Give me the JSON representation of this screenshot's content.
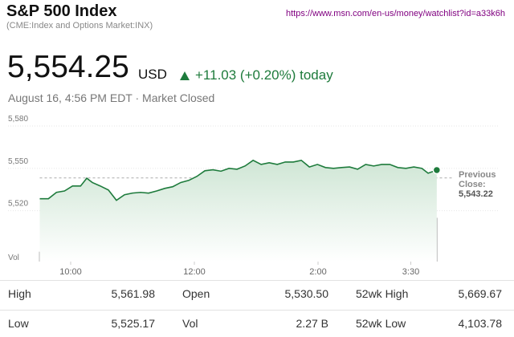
{
  "header": {
    "title": "S&P 500 Index",
    "subtitle": "(CME:Index and Options Market:INX)",
    "url": "https://www.msn.com/en-us/money/watchlist?id=a33k6h"
  },
  "quote": {
    "price": "5,554.25",
    "currency": "USD",
    "change": "+11.03 (+0.20%) today",
    "timestamp": "August 16, 4:56 PM EDT · Market Closed"
  },
  "chart_data": {
    "type": "line",
    "x": [
      9.5,
      9.64,
      9.77,
      9.9,
      10.03,
      10.16,
      10.26,
      10.35,
      10.48,
      10.61,
      10.74,
      10.87,
      11.0,
      11.13,
      11.26,
      11.39,
      11.52,
      11.65,
      11.78,
      11.91,
      12.04,
      12.17,
      12.3,
      12.43,
      12.56,
      12.69,
      12.82,
      12.95,
      13.08,
      13.21,
      13.34,
      13.47,
      13.6,
      13.73,
      13.86,
      13.99,
      14.12,
      14.25,
      14.38,
      14.51,
      14.64,
      14.77,
      14.9,
      15.03,
      15.16,
      15.29,
      15.42,
      15.55,
      15.68,
      15.78,
      15.92
    ],
    "series": [
      {
        "color": "#1e7b3c",
        "values": [
          5528.5,
          5528.5,
          5533,
          5534,
          5537.5,
          5537.5,
          5543,
          5540,
          5537.5,
          5534.7,
          5527.4,
          5531.3,
          5532.5,
          5533,
          5532.5,
          5534,
          5535.8,
          5537,
          5540,
          5541.5,
          5544.3,
          5548.3,
          5549,
          5548,
          5550,
          5549.4,
          5551.7,
          5555.7,
          5552.8,
          5554,
          5552.8,
          5554.5,
          5554.5,
          5555.7,
          5551,
          5552.8,
          5550.6,
          5550,
          5550.6,
          5551,
          5549.4,
          5552.8,
          5551.7,
          5552.8,
          5552.8,
          5550.6,
          5550,
          5551,
          5550,
          5546.6,
          5548.8
        ]
      },
      {
        "name": "Vol",
        "axis": "y2",
        "color": "#bdbdbd",
        "values": [
          7,
          6,
          6,
          6,
          6,
          6,
          6,
          6,
          6,
          6,
          6,
          5,
          6,
          5,
          5,
          6,
          5,
          5,
          5,
          5,
          6,
          6,
          5,
          5,
          5,
          5,
          5,
          5,
          5,
          5,
          5,
          5,
          5,
          5,
          5,
          5,
          5,
          5,
          5,
          5,
          5,
          5,
          5,
          5,
          5,
          5,
          6,
          6,
          7,
          9,
          31
        ]
      }
    ],
    "xlim": [
      9.5,
      16
    ],
    "xticks": [
      {
        "value": 10,
        "label": "10:00"
      },
      {
        "value": 12,
        "label": "12:00"
      },
      {
        "value": 14,
        "label": "2:00"
      },
      {
        "value": 15.5,
        "label": "3:30"
      }
    ],
    "ylim": [
      5484,
      5584
    ],
    "yticks": [
      {
        "value": 5520,
        "label": "5,520"
      },
      {
        "value": 5550,
        "label": "5,550"
      },
      {
        "value": 5580,
        "label": "5,580"
      }
    ],
    "y2lim": [
      0,
      100
    ],
    "grid": true,
    "previous_close": {
      "text": "Previous Close:",
      "value": 5543.22,
      "label": "5,543.22"
    }
  },
  "stats": {
    "rows": [
      [
        [
          "High",
          "5,561.98"
        ],
        [
          "Open",
          "5,530.50"
        ],
        [
          "52wk High",
          "5,669.67"
        ]
      ],
      [
        [
          "Low",
          "5,525.17"
        ],
        [
          "Vol",
          "2.27 B"
        ],
        [
          "52wk Low",
          "4,103.78"
        ]
      ]
    ]
  }
}
